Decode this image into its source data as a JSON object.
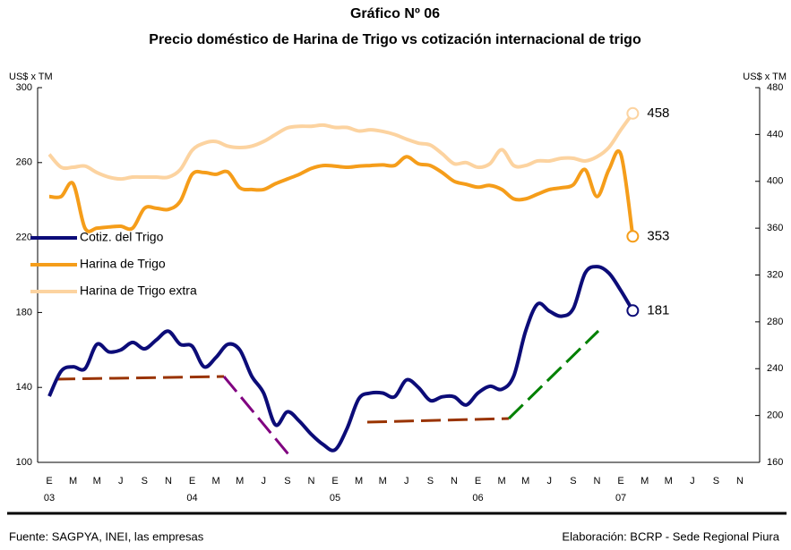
{
  "chart_data": {
    "type": "line",
    "title": "Gráfico Nº 06",
    "subtitle": "Precio doméstico de Harina de Trigo vs cotización internacional de trigo",
    "y_label": "US$ x TM",
    "y2_label": "US$ x TM",
    "source": "Fuente: SAGPYA, INEI, las empresas",
    "credit": "Elaboración: BCRP - Sede Regional Piura",
    "categories": [
      "E",
      null,
      "M",
      null,
      "M",
      null,
      "J",
      null,
      "S",
      null,
      "N",
      null,
      "E",
      null,
      "M",
      null,
      "M",
      null,
      "J",
      null,
      "S",
      null,
      "N",
      null,
      "E",
      null,
      "M",
      null,
      "M",
      null,
      "J",
      null,
      "S",
      null,
      "N",
      null,
      "E",
      null,
      "M",
      null,
      "M",
      null,
      "J",
      null,
      "S",
      null,
      "N",
      null,
      "E",
      null,
      "M",
      null,
      "M",
      null,
      "J",
      null,
      "S",
      null,
      "N"
    ],
    "category_years": [
      "03",
      null,
      null,
      null,
      null,
      null,
      null,
      null,
      null,
      null,
      null,
      null,
      "04",
      null,
      null,
      null,
      null,
      null,
      null,
      null,
      null,
      null,
      null,
      null,
      "05",
      null,
      null,
      null,
      null,
      null,
      null,
      null,
      null,
      null,
      null,
      null,
      "06",
      null,
      null,
      null,
      null,
      null,
      null,
      null,
      null,
      null,
      null,
      null,
      "07",
      null,
      null,
      null,
      null,
      null,
      null,
      null,
      null,
      null,
      null
    ],
    "ylim": [
      100,
      300
    ],
    "yticks": [
      100,
      140,
      180,
      220,
      260,
      300
    ],
    "y2lim": [
      160,
      480
    ],
    "y2ticks": [
      160,
      200,
      240,
      280,
      320,
      360,
      400,
      440,
      480
    ],
    "legend": "center-left",
    "series": [
      {
        "name": "Cotiz. del Trigo",
        "color": "#0c0c78",
        "axis": "y",
        "values": [
          135.3,
          148.7,
          151,
          150,
          163,
          159,
          160,
          164,
          160.6,
          165.4,
          170,
          163,
          162,
          151,
          156,
          163,
          160,
          146,
          137,
          120,
          127,
          122,
          115,
          109.5,
          106.7,
          118,
          134,
          137,
          137,
          135,
          144,
          140,
          133,
          135,
          135,
          130.6,
          137,
          140.6,
          139,
          146,
          170,
          184.5,
          180.7,
          178,
          182,
          201,
          204.5,
          201,
          191.7,
          181,
          null,
          null,
          null,
          null,
          null,
          null,
          null,
          null,
          null
        ]
      },
      {
        "name": "Harina de Trigo",
        "color": "#f59d1a",
        "axis": "y2",
        "values": [
          387,
          387,
          398,
          360,
          360,
          361,
          361.6,
          360,
          377,
          377,
          376,
          383,
          406,
          407.5,
          406,
          408,
          394.5,
          393,
          393,
          398,
          402,
          406,
          411,
          413.5,
          413,
          412,
          413,
          413.5,
          414,
          413.5,
          421,
          415,
          413.5,
          407.5,
          400,
          397.5,
          395,
          396.5,
          393,
          385,
          385,
          389,
          393,
          394.5,
          397,
          410,
          387,
          410,
          423,
          353,
          null,
          null,
          null,
          null,
          null,
          null,
          null,
          null,
          null
        ]
      },
      {
        "name": "Harina de Trigo extra",
        "color": "#fcd3a0",
        "axis": "y2",
        "values": [
          423,
          412,
          412,
          413,
          407.5,
          403.6,
          402,
          403.6,
          403.6,
          403.6,
          403.6,
          410,
          426.5,
          432.6,
          434,
          430,
          428.8,
          430,
          434,
          440,
          445.6,
          447,
          447,
          448,
          446,
          446,
          443,
          444,
          442.6,
          440,
          436,
          432.6,
          431,
          423.5,
          415,
          416,
          412,
          415,
          427,
          413.5,
          413.5,
          417.4,
          417.4,
          419.7,
          419.7,
          417.4,
          421,
          429,
          444,
          458,
          null,
          null,
          null,
          null,
          null,
          null,
          null,
          null,
          null
        ]
      }
    ]
  }
}
